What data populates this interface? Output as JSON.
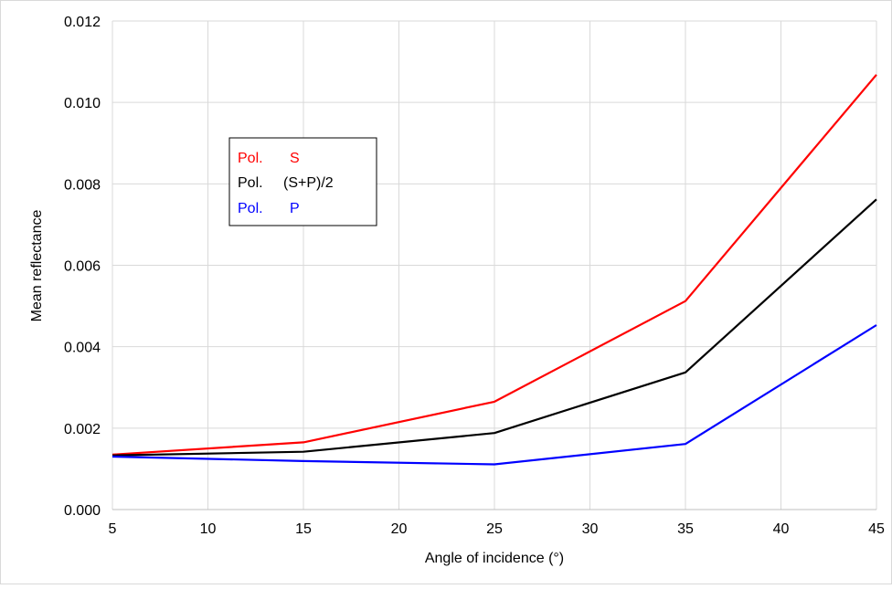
{
  "chart_data": {
    "type": "line",
    "title": "",
    "xlabel": "Angle of incidence (°)",
    "ylabel": "Mean reflectance",
    "x": [
      5,
      15,
      25,
      35,
      45
    ],
    "xlim": [
      5,
      45
    ],
    "ylim": [
      0,
      0.012
    ],
    "xticks": [
      "5",
      "10",
      "15",
      "20",
      "25",
      "30",
      "35",
      "40",
      "45"
    ],
    "yticks": [
      "0.000",
      "0.002",
      "0.004",
      "0.006",
      "0.008",
      "0.010",
      "0.012"
    ],
    "grid": true,
    "legend_position": "upper-left inside plot",
    "series": [
      {
        "name": "S",
        "prefix": "Pol.",
        "color": "#ff0000",
        "values": [
          0.00135,
          0.00165,
          0.00265,
          0.00512,
          0.01068
        ]
      },
      {
        "name": "(S+P)/2",
        "prefix": "Pol.",
        "color": "#000000",
        "values": [
          0.00133,
          0.00142,
          0.00188,
          0.00337,
          0.00762
        ]
      },
      {
        "name": "P",
        "prefix": "Pol.",
        "color": "#0000ff",
        "values": [
          0.0013,
          0.00119,
          0.00111,
          0.00161,
          0.00453
        ]
      }
    ]
  }
}
